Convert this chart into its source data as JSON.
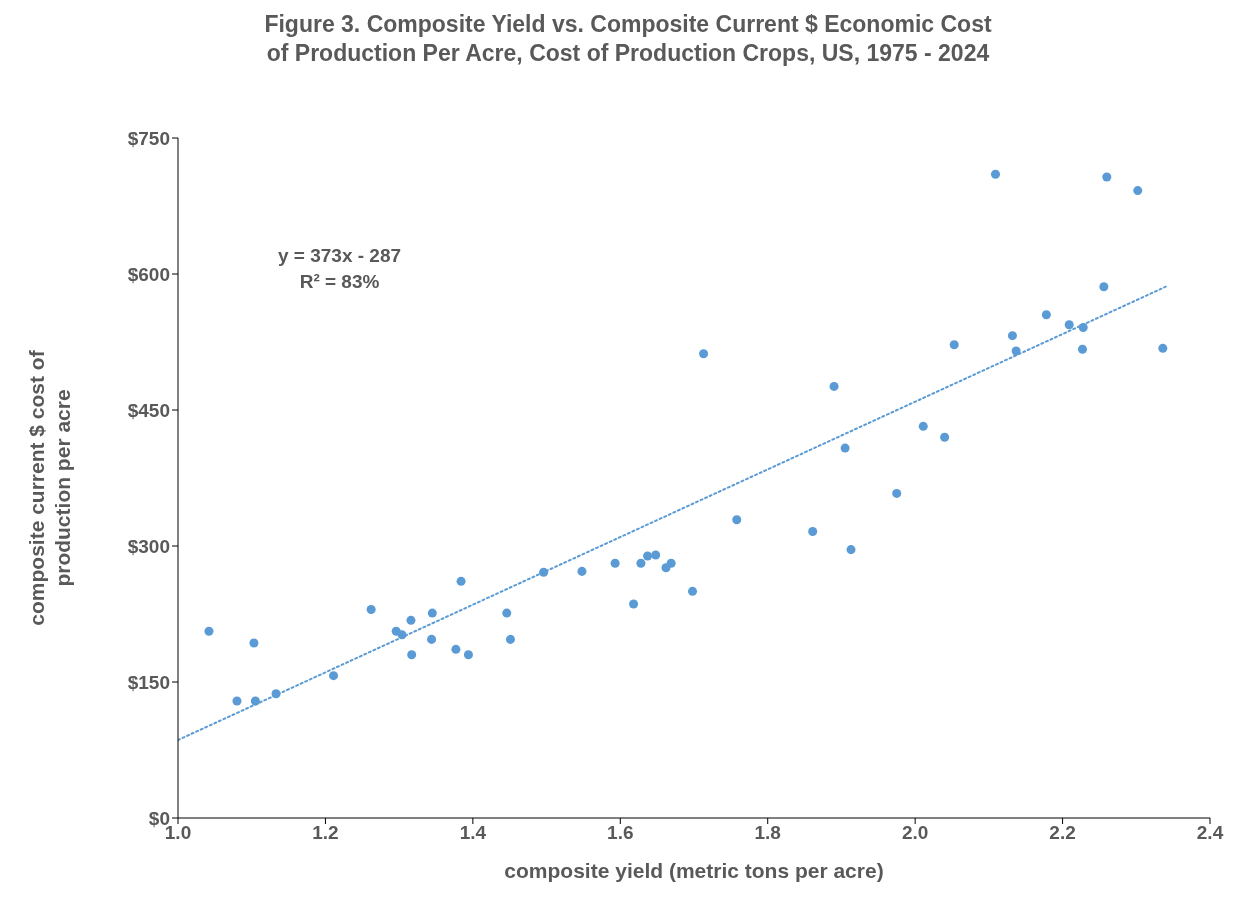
{
  "chart_data": {
    "type": "scatter",
    "title": "Figure 3. Composite Yield vs. Composite Current $ Economic Cost of Production Per Acre, Cost of Production Crops, US, 1975 - 2024",
    "xlabel": "composite yield (metric tons per acre)",
    "ylabel": "composite current $ cost of production per acre",
    "annotations": [
      "y = 373x - 287",
      "R² = 83%"
    ],
    "series": [
      {
        "type": "scatter",
        "color": "#5b9bd5",
        "marker": "circle",
        "x": [
          1.042,
          1.103,
          1.08,
          1.105,
          1.133,
          1.211,
          1.262,
          1.296,
          1.304,
          1.316,
          1.317,
          1.345,
          1.344,
          1.377,
          1.384,
          1.394,
          1.446,
          1.451,
          1.496,
          1.548,
          1.593,
          1.628,
          1.637,
          1.648,
          1.662,
          1.669,
          1.698,
          1.618,
          1.713,
          1.758,
          1.861,
          1.89,
          1.905,
          1.913,
          1.975,
          2.011,
          2.04,
          2.053,
          2.109,
          2.132,
          2.137,
          2.178,
          2.209,
          2.227,
          2.228,
          2.256,
          2.26,
          2.302,
          2.336
        ],
        "values": [
          206,
          193,
          129,
          129,
          137,
          157,
          230,
          206,
          202,
          218,
          180,
          226,
          197,
          186,
          261,
          180,
          226,
          197,
          271,
          272,
          281,
          281,
          289,
          290,
          276,
          281,
          250,
          236,
          512,
          329,
          316,
          476,
          408,
          296,
          358,
          432,
          420,
          522,
          710,
          532,
          515,
          555,
          544,
          517,
          541,
          586,
          707,
          692,
          518
        ]
      },
      {
        "type": "line",
        "color": "#5b9bd5",
        "line_style": "dotted",
        "marker": "none",
        "x": [
          1.0,
          2.34
        ],
        "values": [
          86,
          586
        ]
      }
    ],
    "xlim": [
      1.0,
      2.4
    ],
    "xticks": [
      {
        "value": 1.0,
        "label": "1.0"
      },
      {
        "value": 1.2,
        "label": "1.2"
      },
      {
        "value": 1.4,
        "label": "1.4"
      },
      {
        "value": 1.6,
        "label": "1.6"
      },
      {
        "value": 1.8,
        "label": "1.8"
      },
      {
        "value": 2.0,
        "label": "2.0"
      },
      {
        "value": 2.2,
        "label": "2.2"
      },
      {
        "value": 2.4,
        "label": "2.4"
      }
    ],
    "ylim": [
      0,
      750
    ],
    "yticks": [
      {
        "value": 0,
        "label": "$0"
      },
      {
        "value": 150,
        "label": "$150"
      },
      {
        "value": 300,
        "label": "$300"
      },
      {
        "value": 450,
        "label": "$450"
      },
      {
        "value": 600,
        "label": "$600"
      },
      {
        "value": 750,
        "label": "$750"
      }
    ],
    "grid": false
  }
}
